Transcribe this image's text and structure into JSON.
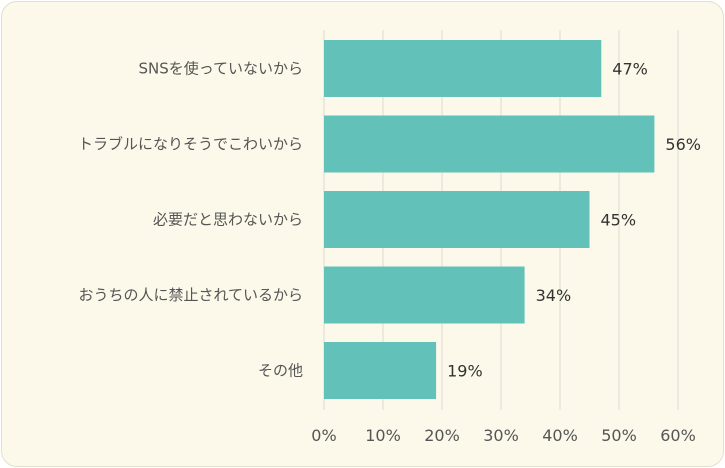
{
  "chart_data": {
    "type": "bar",
    "orientation": "horizontal",
    "categories": [
      "SNSを使っていないから",
      "トラブルになりそうでこわいから",
      "必要だと思わないから",
      "おうちの人に禁止されているから",
      "その他"
    ],
    "values": [
      47,
      56,
      45,
      34,
      19
    ],
    "value_labels": [
      "47%",
      "56%",
      "45%",
      "34%",
      "19%"
    ],
    "xlim": [
      0,
      60
    ],
    "xticks": [
      0,
      10,
      20,
      30,
      40,
      50,
      60
    ],
    "xtick_labels": [
      "0%",
      "10%",
      "20%",
      "30%",
      "40%",
      "50%",
      "60%"
    ],
    "grid": true,
    "legend": "none",
    "colors": {
      "bar": "#62c1b9",
      "grid": "#dcdcd4",
      "background": "#fcf9ea"
    }
  }
}
